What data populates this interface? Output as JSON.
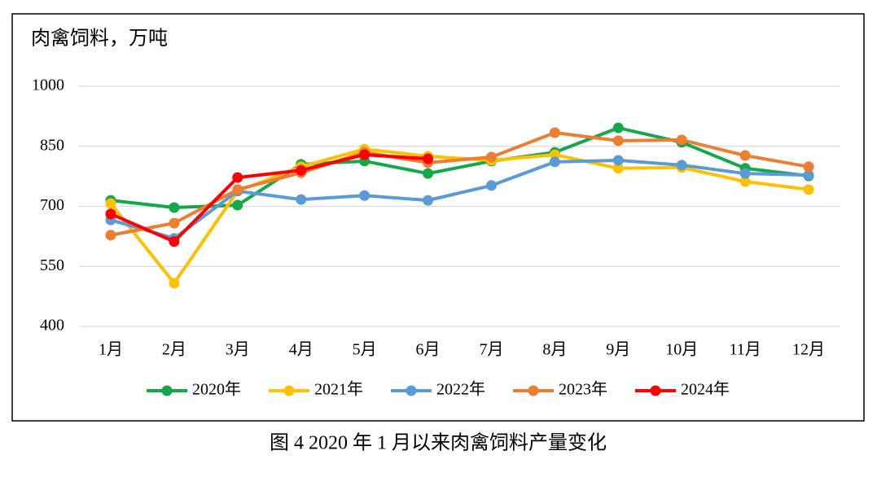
{
  "chart_data": {
    "type": "line",
    "title": "图 4  2020 年 1 月以来肉禽饲料产量变化",
    "ylabel": "肉禽饲料，万吨",
    "categories": [
      "1月",
      "2月",
      "3月",
      "4月",
      "5月",
      "6月",
      "7月",
      "8月",
      "9月",
      "10月",
      "11月",
      "12月"
    ],
    "series": [
      {
        "name": "2020年",
        "color": "#13a84a",
        "values": [
          715,
          697,
          703,
          805,
          813,
          782,
          813,
          835,
          896,
          860,
          795,
          776
        ]
      },
      {
        "name": "2021年",
        "color": "#ffc000",
        "values": [
          707,
          508,
          738,
          799,
          843,
          825,
          815,
          829,
          795,
          797,
          762,
          742
        ]
      },
      {
        "name": "2022年",
        "color": "#5b9bd5",
        "values": [
          666,
          620,
          738,
          717,
          727,
          715,
          752,
          811,
          815,
          803,
          782,
          778
        ]
      },
      {
        "name": "2023年",
        "color": "#ed7d31",
        "values": [
          628,
          658,
          742,
          784,
          835,
          809,
          823,
          884,
          864,
          866,
          827,
          799
        ]
      },
      {
        "name": "2024年",
        "color": "#ff0000",
        "values": [
          681,
          612,
          772,
          790,
          829,
          819,
          null,
          null,
          null,
          null,
          null,
          null
        ]
      }
    ],
    "ylim": [
      400,
      1000
    ],
    "yticks": [
      400,
      550,
      700,
      850,
      1000
    ],
    "grid": true,
    "legend": "bottom"
  }
}
